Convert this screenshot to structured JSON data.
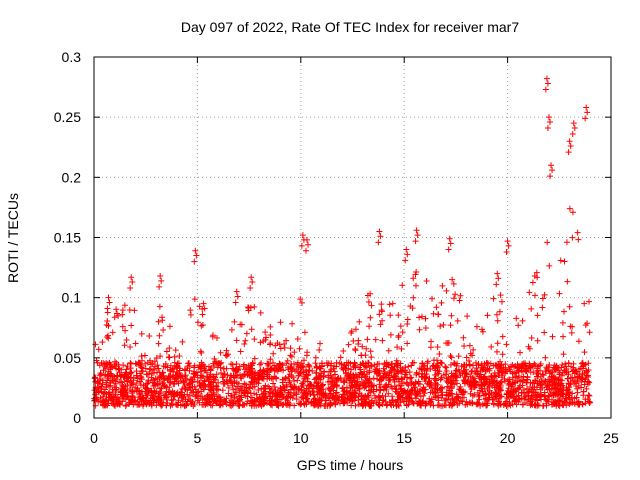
{
  "chart_data": {
    "type": "scatter",
    "title": "Day 097 of 2022, Rate Of TEC Index for receiver mar7",
    "xlabel": "GPS time / hours",
    "ylabel": "ROTI / TECUs",
    "xlim": [
      0,
      25
    ],
    "ylim": [
      0,
      0.3
    ],
    "xticks": [
      0,
      5,
      10,
      15,
      20,
      25
    ],
    "yticks": [
      0,
      0.05,
      0.1,
      0.15,
      0.2,
      0.25,
      0.3
    ],
    "xtick_labels": [
      "0",
      "5",
      "10",
      "15",
      "20",
      "25"
    ],
    "ytick_labels": [
      "0",
      "0.05",
      "0.1",
      "0.15",
      "0.2",
      "0.25",
      "0.3"
    ],
    "grid": true,
    "marker": "+",
    "series_color": "#ff0000",
    "series": [
      {
        "name": "ROTI",
        "description": "dense scatter of ROTI samples, 0 to 24 h",
        "baseline_range": [
          0.01,
          0.05
        ],
        "notable_points": [
          {
            "x": 0.7,
            "y": 0.1
          },
          {
            "x": 1.8,
            "y": 0.117
          },
          {
            "x": 3.2,
            "y": 0.118
          },
          {
            "x": 4.9,
            "y": 0.139
          },
          {
            "x": 5.3,
            "y": 0.095
          },
          {
            "x": 6.9,
            "y": 0.105
          },
          {
            "x": 7.6,
            "y": 0.117
          },
          {
            "x": 10.1,
            "y": 0.152
          },
          {
            "x": 10.3,
            "y": 0.148
          },
          {
            "x": 13.8,
            "y": 0.155
          },
          {
            "x": 15.1,
            "y": 0.14
          },
          {
            "x": 15.6,
            "y": 0.156
          },
          {
            "x": 17.2,
            "y": 0.149
          },
          {
            "x": 19.5,
            "y": 0.12
          },
          {
            "x": 20.0,
            "y": 0.147
          },
          {
            "x": 21.9,
            "y": 0.282
          },
          {
            "x": 22.0,
            "y": 0.25
          },
          {
            "x": 22.1,
            "y": 0.21
          },
          {
            "x": 23.0,
            "y": 0.23
          },
          {
            "x": 23.2,
            "y": 0.245
          },
          {
            "x": 23.8,
            "y": 0.258
          }
        ]
      }
    ]
  }
}
